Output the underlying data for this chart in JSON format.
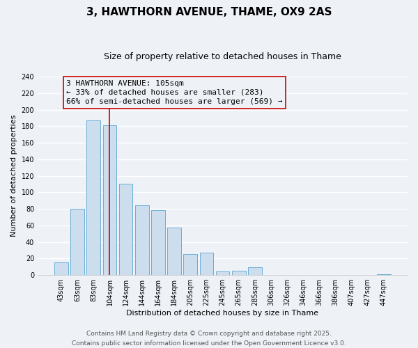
{
  "title": "3, HAWTHORN AVENUE, THAME, OX9 2AS",
  "subtitle": "Size of property relative to detached houses in Thame",
  "xlabel": "Distribution of detached houses by size in Thame",
  "ylabel": "Number of detached properties",
  "bar_labels": [
    "43sqm",
    "63sqm",
    "83sqm",
    "104sqm",
    "124sqm",
    "144sqm",
    "164sqm",
    "184sqm",
    "205sqm",
    "225sqm",
    "245sqm",
    "265sqm",
    "285sqm",
    "306sqm",
    "326sqm",
    "346sqm",
    "366sqm",
    "386sqm",
    "407sqm",
    "427sqm",
    "447sqm"
  ],
  "bar_values": [
    15,
    80,
    187,
    181,
    110,
    84,
    78,
    57,
    25,
    27,
    4,
    5,
    9,
    0,
    0,
    0,
    0,
    0,
    0,
    0,
    1
  ],
  "bar_color": "#ccdded",
  "bar_edge_color": "#6aaed6",
  "vline_x_index": 3,
  "vline_color": "#cc0000",
  "annotation_line1": "3 HAWTHORN AVENUE: 105sqm",
  "annotation_line2": "← 33% of detached houses are smaller (283)",
  "annotation_line3": "66% of semi-detached houses are larger (569) →",
  "box_edge_color": "#cc0000",
  "ylim": [
    0,
    240
  ],
  "yticks": [
    0,
    20,
    40,
    60,
    80,
    100,
    120,
    140,
    160,
    180,
    200,
    220,
    240
  ],
  "background_color": "#eef2f7",
  "grid_color": "#ffffff",
  "footer_line1": "Contains HM Land Registry data © Crown copyright and database right 2025.",
  "footer_line2": "Contains public sector information licensed under the Open Government Licence v3.0.",
  "title_fontsize": 11,
  "subtitle_fontsize": 9,
  "axis_label_fontsize": 8,
  "tick_fontsize": 7,
  "annotation_fontsize": 8,
  "footer_fontsize": 6.5
}
